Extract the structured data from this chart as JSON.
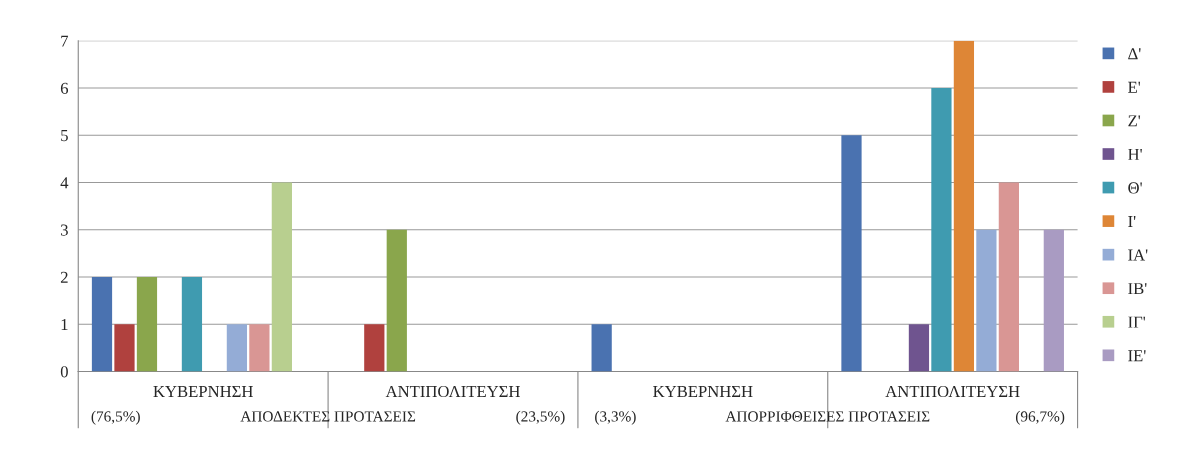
{
  "chart_data": {
    "type": "bar",
    "categories": [
      "ΚΥΒΕΡΝΗΣΗ",
      "ΑΝΤΙΠΟΛΙΤΕΥΣΗ",
      "ΚΥΒΕΡΝΗΣΗ",
      "ΑΝΤΙΠΟΛΙΤΕΥΣΗ"
    ],
    "series": [
      {
        "name": "Δ'",
        "color": "#4a72b0",
        "values": [
          2,
          0,
          1,
          5
        ]
      },
      {
        "name": "Ε'",
        "color": "#b0413e",
        "values": [
          1,
          1,
          0,
          0
        ]
      },
      {
        "name": "Ζ'",
        "color": "#8aa64c",
        "values": [
          2,
          3,
          0,
          0
        ]
      },
      {
        "name": "Η'",
        "color": "#6f548f",
        "values": [
          0,
          0,
          0,
          1
        ]
      },
      {
        "name": "Θ'",
        "color": "#3f9bb0",
        "values": [
          2,
          0,
          0,
          6
        ]
      },
      {
        "name": "Ι'",
        "color": "#de8636",
        "values": [
          0,
          0,
          0,
          7
        ]
      },
      {
        "name": "ΙΑ'",
        "color": "#94acd6",
        "values": [
          1,
          0,
          0,
          3
        ]
      },
      {
        "name": "ΙΒ'",
        "color": "#d99694",
        "values": [
          1,
          0,
          0,
          4
        ]
      },
      {
        "name": "ΙΓ'",
        "color": "#b8cf8f",
        "values": [
          4,
          0,
          0,
          0
        ]
      },
      {
        "name": "ΙΕ'",
        "color": "#a99bc2",
        "values": [
          0,
          0,
          0,
          3
        ]
      }
    ],
    "annotations": [
      "(76,5%)",
      "ΑΠΟΔΕΚΤΕΣ ΠΡΟΤΑΣΕΙΣ",
      "(23,5%)",
      "(3,3%)",
      "ΑΠΟΡΡΙΦΘΕΙΣΕΣ ΠΡΟΤΑΣΕΙΣ",
      "(96,7%)"
    ],
    "ylim": [
      0,
      7
    ],
    "yticks": [
      0,
      1,
      2,
      3,
      4,
      5,
      6,
      7
    ],
    "grid": "y",
    "legend": "right"
  }
}
